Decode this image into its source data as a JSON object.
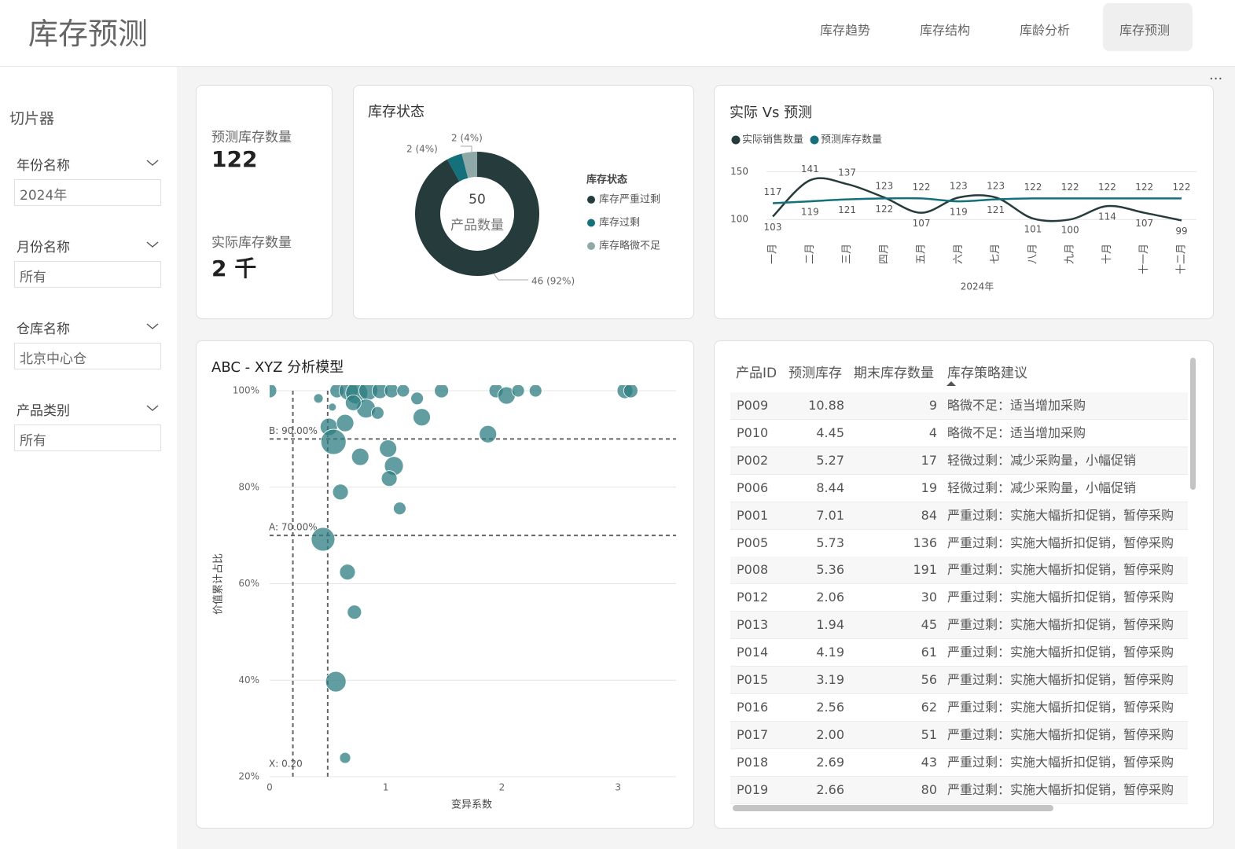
{
  "header": {
    "title": "库存预测"
  },
  "nav": {
    "items": [
      "库存趋势",
      "库存结构",
      "库龄分析",
      "库存预测"
    ],
    "active": 3
  },
  "slicer": {
    "title": "切片器",
    "filters": [
      {
        "label": "年份名称",
        "value": "2024年"
      },
      {
        "label": "月份名称",
        "value": "所有"
      },
      {
        "label": "仓库名称",
        "value": "北京中心仓"
      },
      {
        "label": "产品类别",
        "value": "所有"
      }
    ]
  },
  "kpis": [
    {
      "label": "预测库存数量",
      "value": 122
    },
    {
      "label": "实际库存数量",
      "value": "2 千"
    }
  ],
  "donut": {
    "type": "pie",
    "title": "库存状态",
    "center_value": 50,
    "center_label": "产品数量",
    "legend_title": "库存状态",
    "categories": [
      "库存严重过剩",
      "库存过剩",
      "库存略微不足"
    ],
    "values": [
      46,
      2,
      2
    ],
    "value_labels": [
      "46 (92%)",
      "2 (4%)",
      "2 (4%)"
    ],
    "colors": [
      "#263b3b",
      "#14707a",
      "#8fa9a9"
    ]
  },
  "line": {
    "type": "line",
    "title": "实际 Vs 预测",
    "x_label": "2024年",
    "categories": [
      "一月",
      "二月",
      "三月",
      "四月",
      "五月",
      "六月",
      "七月",
      "八月",
      "九月",
      "十月",
      "十一月",
      "十二月"
    ],
    "ylim": [
      87,
      161
    ],
    "yticks": [
      100,
      150
    ],
    "series": [
      {
        "name": "实际销售数量",
        "color": "#263b3b",
        "values": [
          103,
          141,
          137,
          123,
          107,
          123,
          123,
          101,
          100,
          114,
          107,
          99
        ]
      },
      {
        "name": "预测库存数量",
        "color": "#14707a",
        "values": [
          117,
          119,
          121,
          122,
          122,
          119,
          121,
          122,
          122,
          122,
          122,
          122
        ]
      }
    ]
  },
  "scatter": {
    "type": "scatter",
    "title": "ABC - XYZ 分析模型",
    "x_label": "变异系数",
    "y_label": "价值累计占比",
    "xlim": [
      0,
      3.5
    ],
    "xticks": [
      0,
      1,
      2,
      3
    ],
    "ylim": [
      20,
      100
    ],
    "yticks": [
      {
        "value": 20,
        "label": "20%"
      },
      {
        "value": 40,
        "label": "40%"
      },
      {
        "value": 60,
        "label": "60%"
      },
      {
        "value": 80,
        "label": "80%"
      },
      {
        "value": 100,
        "label": "100%"
      }
    ],
    "color": "#2e7d82",
    "ref_lines": [
      {
        "axis": "y",
        "value": 90,
        "label": "B: 90.00%"
      },
      {
        "axis": "y",
        "value": 70,
        "label": "A: 70.00%"
      },
      {
        "axis": "x",
        "value": 0.2,
        "label": "X: 0.20"
      },
      {
        "axis": "x",
        "value": 0.5
      }
    ],
    "x": [
      0,
      0.42,
      0.54,
      0.58,
      0.68,
      0.75,
      0.85,
      0.95,
      1.05,
      1.15,
      0.83,
      0.93,
      0.72,
      1.27,
      1.31,
      1.48,
      1.88,
      1.95,
      2.04,
      2.14,
      2.29,
      3.06,
      3.11,
      0.51,
      0.65,
      0.55,
      0.78,
      1.02,
      1.07,
      1.03,
      0.61,
      1.12,
      0.46,
      0.67,
      0.73,
      0.57,
      0.65
    ],
    "y": [
      100,
      98.4,
      96.6,
      100,
      100,
      99.5,
      100,
      100,
      100,
      100,
      96.3,
      95.4,
      97.5,
      98.4,
      94.5,
      100,
      91,
      100,
      99,
      100,
      100,
      100,
      100,
      92.5,
      93.3,
      89.4,
      86.3,
      88,
      84.4,
      81.8,
      79,
      75.6,
      69.2,
      62.4,
      54.1,
      39.7,
      23.9
    ],
    "sizes": [
      9,
      6,
      5,
      9,
      12,
      14,
      12,
      10,
      9,
      8,
      12,
      8,
      10,
      8,
      11,
      9,
      11,
      9,
      11,
      8,
      8,
      10,
      9,
      11,
      11,
      16,
      11,
      11,
      12,
      10,
      10,
      8,
      15,
      10,
      9,
      13,
      7
    ]
  },
  "table": {
    "columns": [
      "产品ID",
      "预测库存",
      "期末库存数量",
      "库存策略建议"
    ],
    "rows": [
      [
        "P009",
        "10.88",
        "9",
        "略微不足：适当增加采购"
      ],
      [
        "P010",
        "4.45",
        "4",
        "略微不足：适当增加采购"
      ],
      [
        "P002",
        "5.27",
        "17",
        "轻微过剩：减少采购量，小幅促销"
      ],
      [
        "P006",
        "8.44",
        "19",
        "轻微过剩：减少采购量，小幅促销"
      ],
      [
        "P001",
        "7.01",
        "84",
        "严重过剩：实施大幅折扣促销，暂停采购"
      ],
      [
        "P005",
        "5.73",
        "136",
        "严重过剩：实施大幅折扣促销，暂停采购"
      ],
      [
        "P008",
        "5.36",
        "191",
        "严重过剩：实施大幅折扣促销，暂停采购"
      ],
      [
        "P012",
        "2.06",
        "30",
        "严重过剩：实施大幅折扣促销，暂停采购"
      ],
      [
        "P013",
        "1.94",
        "45",
        "严重过剩：实施大幅折扣促销，暂停采购"
      ],
      [
        "P014",
        "4.19",
        "61",
        "严重过剩：实施大幅折扣促销，暂停采购"
      ],
      [
        "P015",
        "3.19",
        "56",
        "严重过剩：实施大幅折扣促销，暂停采购"
      ],
      [
        "P016",
        "2.56",
        "62",
        "严重过剩：实施大幅折扣促销，暂停采购"
      ],
      [
        "P017",
        "2.00",
        "51",
        "严重过剩：实施大幅折扣促销，暂停采购"
      ],
      [
        "P018",
        "2.69",
        "43",
        "严重过剩：实施大幅折扣促销，暂停采购"
      ],
      [
        "P019",
        "2.66",
        "80",
        "严重过剩：实施大幅折扣促销，暂停采购"
      ]
    ]
  }
}
